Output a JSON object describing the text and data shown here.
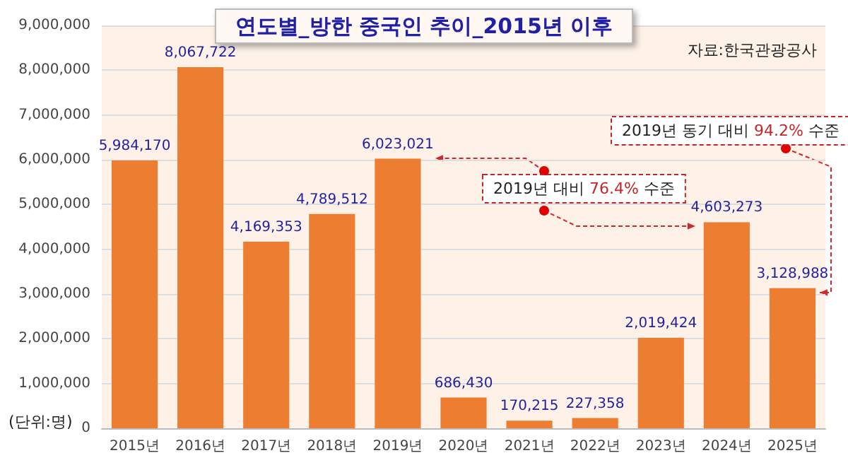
{
  "chart_data": {
    "type": "bar",
    "title": "연도별_방한 중국인 추이_2015년 이후",
    "categories": [
      "2015년",
      "2016년",
      "2017년",
      "2018년",
      "2019년",
      "2020년",
      "2021년",
      "2022년",
      "2023년",
      "2024년",
      "2025년"
    ],
    "values": [
      5984170,
      8067722,
      4169353,
      4789512,
      6023021,
      686430,
      170215,
      227358,
      2019424,
      4603273,
      3128988
    ],
    "value_labels": [
      "5,984,170",
      "8,067,722",
      "4,169,353",
      "4,789,512",
      "6,023,021",
      "686,430",
      "170,215",
      "227,358",
      "2,019,424",
      "4,603,273",
      "3,128,988"
    ],
    "color": "#ed7d31",
    "ylim": [
      0,
      9000000
    ],
    "yticks": [
      0,
      {
        "value": 1000000,
        "label": "1,000,000"
      },
      {
        "value": 2000000,
        "label": "2,000,000"
      },
      {
        "value": 3000000,
        "label": "3,000,000"
      },
      {
        "value": 4000000,
        "label": "4,000,000"
      },
      {
        "value": 5000000,
        "label": "5,000,000"
      },
      {
        "value": 6000000,
        "label": "6,000,000"
      },
      {
        "value": 7000000,
        "label": "7,000,000"
      },
      {
        "value": 8000000,
        "label": "8,000,000"
      },
      {
        "value": 9000000,
        "label": "9,000,000"
      }
    ],
    "grid": "y",
    "annotations": [
      "자료:한국관광공사",
      "(단위:명)",
      "2019년 동기 대비 94.2% 수준",
      "2019년 대비 76.4% 수준"
    ]
  }
}
